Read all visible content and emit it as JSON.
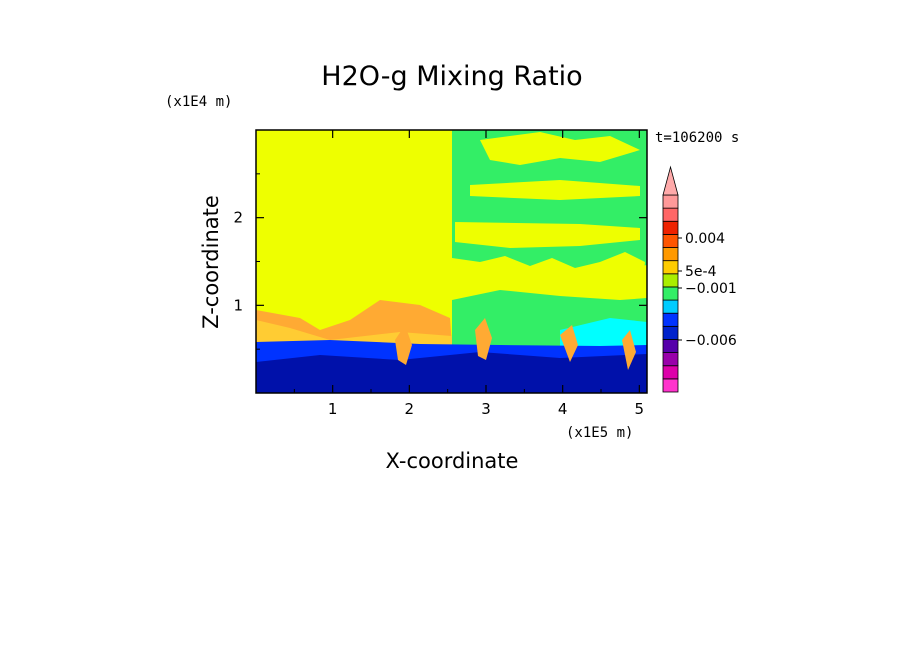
{
  "chart_data": {
    "type": "heatmap",
    "title": "H2O-g Mixing Ratio",
    "xlabel": "X-coordinate",
    "ylabel": "Z-coordinate",
    "x_scale_label": "(x1E5 m)",
    "y_scale_label": "(x1E4 m)",
    "time_label": "t=106200 s",
    "xlim": [
      0,
      5.1
    ],
    "ylim": [
      0,
      3.0
    ],
    "x_ticks": [
      {
        "value": 1,
        "label": "1"
      },
      {
        "value": 2,
        "label": "2"
      },
      {
        "value": 3,
        "label": "3"
      },
      {
        "value": 4,
        "label": "4"
      },
      {
        "value": 5,
        "label": "5"
      }
    ],
    "y_ticks": [
      {
        "value": 1,
        "label": "1"
      },
      {
        "value": 2,
        "label": "2"
      }
    ],
    "colorbar": {
      "colors": [
        "#ff33cc",
        "#dd00aa",
        "#9900aa",
        "#5500aa",
        "#0022cc",
        "#0033ff",
        "#00ccff",
        "#33ee66",
        "#aaee00",
        "#ffcc00",
        "#ff9900",
        "#ff5500",
        "#ee2200",
        "#ff6666",
        "#ff9999"
      ],
      "labels": [
        {
          "value": 0.004,
          "text": "0.004"
        },
        {
          "value": 0.0005,
          "text": "5e-4"
        },
        {
          "value": -0.001,
          "text": "−0.001"
        },
        {
          "value": -0.006,
          "text": "−0.006"
        }
      ],
      "extend": "max"
    },
    "field_colors": {
      "background": "#eeff00",
      "green": "#33ee66",
      "cyan": "#00ffff",
      "blue": "#0033ff",
      "navy": "#0011aa",
      "orange": "#ffaa33",
      "light_orange": "#ffcc33"
    }
  }
}
